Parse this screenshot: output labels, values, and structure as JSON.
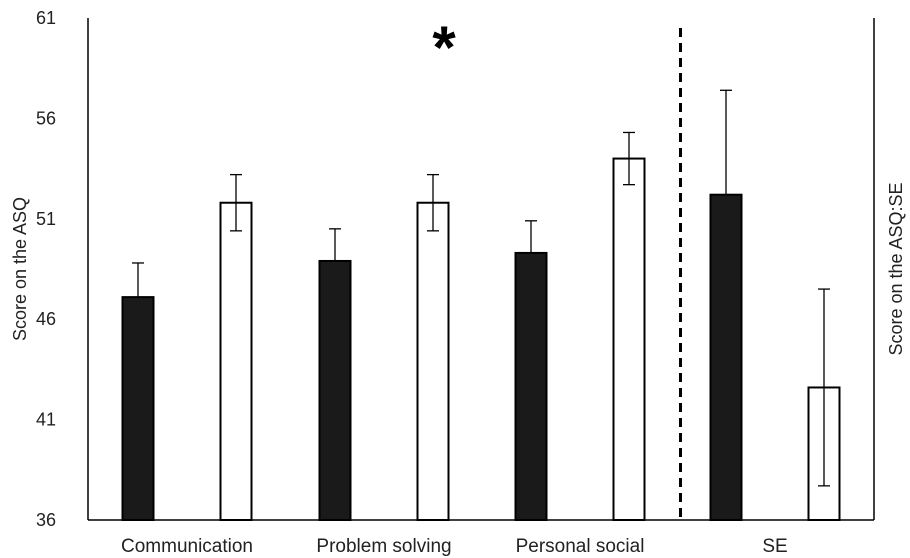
{
  "chart_data": {
    "type": "bar",
    "title": "",
    "ylabel": "Score on the ASQ",
    "ylabel_right": "Score on the ASQ:SE",
    "ylim": [
      36,
      61
    ],
    "yticks": [
      36,
      41,
      46,
      51,
      56,
      61
    ],
    "categories": [
      "Communication",
      "Problem solving",
      "Personal social",
      "SE"
    ],
    "series": [
      {
        "fill": "filled",
        "color": "#1a1a1a",
        "values": [
          47.1,
          48.9,
          49.3,
          52.2
        ],
        "error": [
          1.7,
          1.6,
          1.6,
          5.2
        ]
      },
      {
        "fill": "open",
        "color": "#ffffff",
        "values": [
          51.8,
          51.8,
          54.0,
          42.6
        ],
        "error": [
          1.4,
          1.4,
          1.3,
          4.9
        ]
      }
    ],
    "separator_before_category": 3,
    "significance": [
      {
        "category": 1,
        "label": "*"
      }
    ],
    "grid": false,
    "legend": "none"
  }
}
